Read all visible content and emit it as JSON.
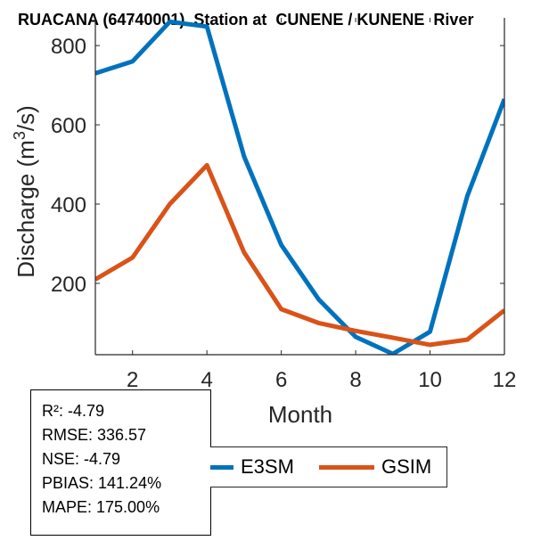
{
  "chart_data": {
    "type": "line",
    "title": "RUACANA (64740001)  Station at  CUNENE / KUNENE  River",
    "xlabel": "Month",
    "ylabel": "Discharge (m³/s)",
    "xlim": [
      1,
      12
    ],
    "ylim": [
      20,
      870
    ],
    "xticks": [
      2,
      4,
      6,
      8,
      10,
      12
    ],
    "yticks": [
      200,
      400,
      600,
      800
    ],
    "grid": false,
    "legend_position": "bottom",
    "series": [
      {
        "name": "E3SM",
        "color": "#0072BD",
        "x": [
          1,
          2,
          3,
          4,
          5,
          6,
          7,
          8,
          9,
          10,
          11,
          12
        ],
        "y": [
          730,
          760,
          860,
          848,
          520,
          297,
          160,
          65,
          22,
          78,
          420,
          665
        ]
      },
      {
        "name": "GSIM",
        "color": "#D95319",
        "x": [
          1,
          2,
          3,
          4,
          5,
          6,
          7,
          8,
          9,
          10,
          11,
          12
        ],
        "y": [
          210,
          265,
          400,
          498,
          278,
          135,
          100,
          80,
          63,
          45,
          58,
          132
        ]
      }
    ]
  },
  "stats": {
    "r2": "R²: -4.79",
    "rmse": "RMSE: 336.57",
    "nse": "NSE: -4.79",
    "pbias": "PBIAS: 141.24%",
    "mape": "MAPE: 175.00%"
  }
}
